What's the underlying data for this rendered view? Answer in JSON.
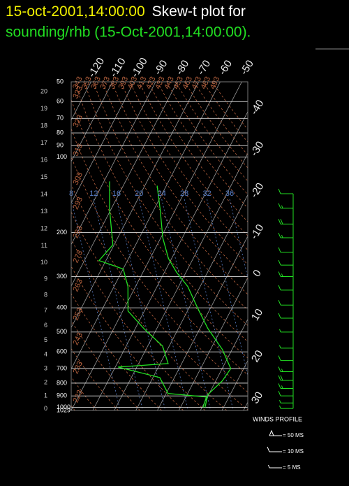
{
  "chart_data": {
    "type": "skewt",
    "title_time": "15-oct-2001,14:00:00",
    "title": "Skew-t plot for",
    "subtitle": "sounding/rhb (15-Oct-2001,14:00:00).",
    "ylog": true,
    "ylim": [
      50,
      1029
    ],
    "yticks": [
      50,
      60,
      70,
      80,
      90,
      100,
      200,
      300,
      400,
      500,
      600,
      700,
      800,
      900,
      1000,
      1029
    ],
    "height_ticks": [
      0,
      1,
      2,
      3,
      4,
      5,
      6,
      7,
      8,
      9,
      10,
      11,
      12,
      13,
      14,
      15,
      16,
      17,
      18,
      19,
      20
    ],
    "xlim": [
      -50,
      32
    ],
    "xticks": [
      -120,
      -110,
      -100,
      -90,
      -80,
      -70,
      -60,
      -50,
      -40,
      -30,
      -20,
      -10,
      0,
      10,
      20,
      30
    ],
    "isotherm_color": "#9a9a9a",
    "pressure_color": "#d8d8d8",
    "theta_ticks": [
      223,
      233,
      243,
      253,
      263,
      273,
      283,
      293,
      303,
      313,
      323,
      333,
      343,
      353,
      363,
      373,
      383,
      393,
      403,
      413,
      423,
      433,
      443,
      453,
      463,
      473,
      483,
      493
    ],
    "theta_color": "#b8623e",
    "blue_ticks": [
      8,
      12,
      16,
      20,
      24,
      28,
      32,
      36
    ],
    "blue_color": "#5a7fc8",
    "series": [
      {
        "color": "#22e022",
        "pressure": [
          1000,
          890,
          784,
          700,
          587,
          484,
          399,
          329,
          289,
          254,
          210,
          162,
          130
        ],
        "values": [
          11.4,
          9.6,
          13,
          14,
          5.5,
          -6.3,
          -16.2,
          -25.7,
          -34.3,
          -41.5,
          -49.1,
          -57.1,
          -64.3
        ]
      },
      {
        "color": "#22e022",
        "pressure": [
          1000,
          909,
          880,
          760,
          690,
          668,
          569,
          484,
          412,
          329,
          280,
          259,
          224,
          162,
          125
        ],
        "values": [
          10.5,
          9.5,
          -9.1,
          -16.8,
          -38.7,
          -16.3,
          -23.1,
          -36,
          -47.6,
          -53.5,
          -59.9,
          -73.2,
          -70.6,
          -80.6,
          -87.4
        ]
      }
    ],
    "winds": {
      "color": "#22e022",
      "pressure": [
        140,
        160,
        185,
        210,
        240,
        270,
        300,
        340,
        390,
        440,
        500,
        580,
        650,
        720,
        780,
        840,
        900,
        960,
        1010
      ],
      "speed": [
        10,
        15,
        20,
        15,
        10,
        10,
        15,
        10,
        10,
        10,
        5,
        5,
        10,
        15,
        20,
        15,
        10,
        5,
        5
      ]
    },
    "wind_title": "WINDS PROFILE",
    "wind_legend": [
      {
        "value": 50,
        "label": "= 50 MS"
      },
      {
        "value": 10,
        "label": "= 10 MS"
      },
      {
        "value": 5,
        "label": "= 5 MS"
      }
    ]
  }
}
